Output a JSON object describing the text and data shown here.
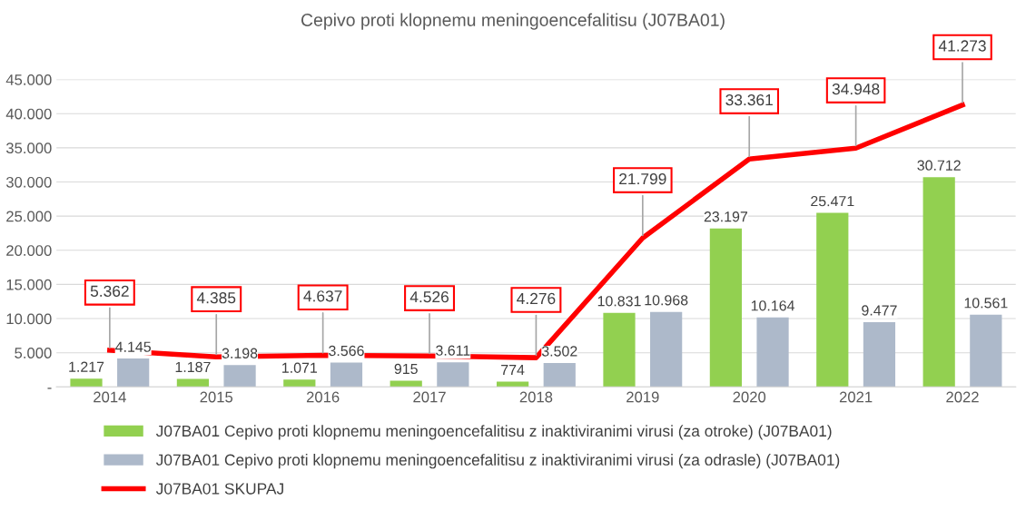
{
  "chart_data": {
    "type": "bar",
    "title": "Cepivo proti klopnemu meningoencefalitisu (J07BA01)",
    "categories": [
      "2014",
      "2015",
      "2016",
      "2017",
      "2018",
      "2019",
      "2020",
      "2021",
      "2022"
    ],
    "series": [
      {
        "name": "J07BA01 Cepivo proti klopnemu meningoencefalitisu z inaktiviranimi virusi (za otroke) (J07BA01)",
        "color": "#92d050",
        "values": [
          1217,
          1187,
          1071,
          915,
          774,
          10831,
          23197,
          25471,
          30712
        ],
        "value_labels": [
          "1.217",
          "1.187",
          "1.071",
          "915",
          "774",
          "10.831",
          "23.197",
          "25.471",
          "30.712"
        ]
      },
      {
        "name": "J07BA01 Cepivo proti klopnemu meningoencefalitisu z inaktiviranimi virusi (za odrasle) (J07BA01)",
        "color": "#adb9ca",
        "values": [
          4145,
          3198,
          3566,
          3611,
          3502,
          10968,
          10164,
          9477,
          10561
        ],
        "value_labels": [
          "4.145",
          "3.198",
          "3.566",
          "3.611",
          "3.502",
          "10.968",
          "10.164",
          "9.477",
          "10.561"
        ]
      },
      {
        "name": "J07BA01 SKUPAJ",
        "type": "line",
        "color": "#ff0000",
        "values": [
          5362,
          4385,
          4637,
          4526,
          4276,
          21799,
          33361,
          34948,
          41273
        ],
        "value_labels": [
          "5.362",
          "4.385",
          "4.637",
          "4.526",
          "4.276",
          "21.799",
          "33.361",
          "34.948",
          "41.273"
        ]
      }
    ],
    "ylim": [
      0,
      45000
    ],
    "yticks": [
      {
        "value": 0,
        "label": "-"
      },
      {
        "value": 5000,
        "label": "5.000"
      },
      {
        "value": 10000,
        "label": "10.000"
      },
      {
        "value": 15000,
        "label": "15.000"
      },
      {
        "value": 20000,
        "label": "20.000"
      },
      {
        "value": 25000,
        "label": "25.000"
      },
      {
        "value": 30000,
        "label": "30.000"
      },
      {
        "value": 35000,
        "label": "35.000"
      },
      {
        "value": 40000,
        "label": "40.000"
      },
      {
        "value": 45000,
        "label": "45.000"
      }
    ],
    "grid": "y",
    "legend": "bottom",
    "marker": "none",
    "line_style": "solid"
  }
}
